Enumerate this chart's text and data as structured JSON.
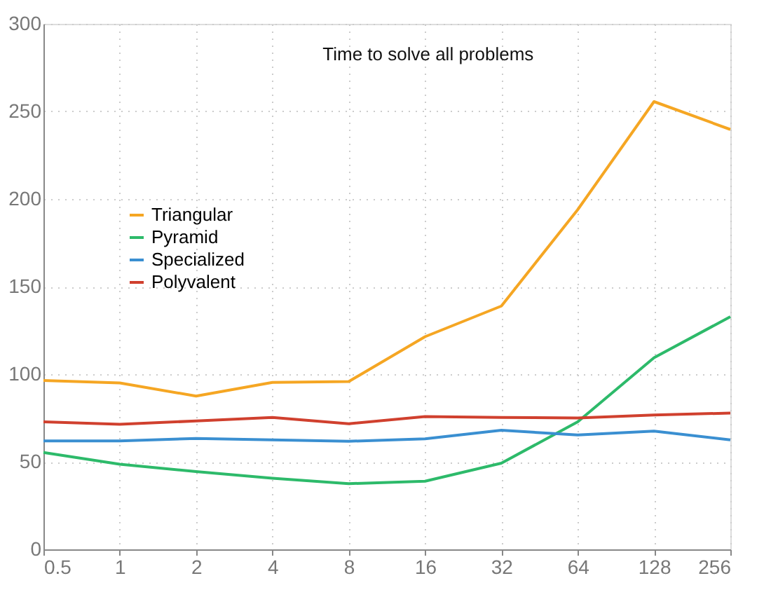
{
  "chart_data": {
    "type": "line",
    "title": "Time to solve all problems",
    "categories": [
      "0.5",
      "1",
      "2",
      "4",
      "8",
      "16",
      "32",
      "64",
      "128",
      "256"
    ],
    "series": [
      {
        "name": "Triangular",
        "color": "#f5a623",
        "values": [
          96.4,
          95,
          87.5,
          95.3,
          95.8,
          121.4,
          138.9,
          193.9,
          255.6,
          239.7
        ]
      },
      {
        "name": "Pyramid",
        "color": "#2dba6a",
        "values": [
          55.3,
          48.6,
          44.4,
          40.6,
          37.5,
          38.9,
          49.2,
          72.8,
          109.4,
          132.8
        ]
      },
      {
        "name": "Specialized",
        "color": "#3a8fd1",
        "values": [
          61.9,
          61.9,
          63.3,
          62.5,
          61.7,
          63.1,
          68,
          65.3,
          67.5,
          62.5
        ]
      },
      {
        "name": "Polyvalent",
        "color": "#d0402e",
        "values": [
          72.8,
          71.4,
          73.3,
          75.3,
          71.7,
          75.8,
          75.3,
          75,
          76.7,
          77.8
        ]
      }
    ],
    "ylim": [
      0,
      300
    ],
    "yticks": [
      0,
      50,
      100,
      150,
      200,
      250,
      300
    ],
    "grid": true,
    "legend": "left",
    "marker": "none",
    "line_style": "solid"
  }
}
